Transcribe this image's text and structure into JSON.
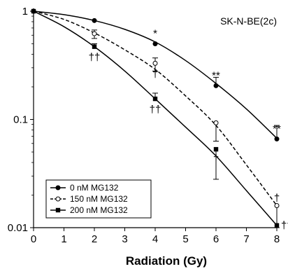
{
  "chart_data": {
    "type": "line",
    "title": "SK-N-BE(2c)",
    "xlabel": "Radiation (Gy)",
    "ylabel": "",
    "y_scale": "log",
    "xlim": [
      0,
      8
    ],
    "ylim": [
      0.01,
      1
    ],
    "x_ticks": [
      0,
      1,
      2,
      3,
      4,
      5,
      6,
      7,
      8
    ],
    "x_tick_labels": [
      "0",
      "1",
      "2",
      "3",
      "4",
      "5",
      "6",
      "7",
      "8"
    ],
    "y_ticks": [
      0.01,
      0.1,
      1
    ],
    "y_tick_labels": [
      "0.01",
      "0.1",
      "1"
    ],
    "grid": false,
    "legend_position": "bottom-left",
    "series": [
      {
        "name": "0 nM MG132",
        "marker": "filled-circle",
        "line": "solid",
        "color": "#000000",
        "x": [
          0,
          2,
          4,
          6,
          8
        ],
        "y": [
          1.0,
          0.82,
          0.5,
          0.205,
          0.066
        ],
        "err_up": [
          0,
          0,
          0,
          0.04,
          0.022
        ],
        "curve": [
          [
            0,
            1.0
          ],
          [
            1,
            0.93
          ],
          [
            2,
            0.82
          ],
          [
            3,
            0.68
          ],
          [
            4,
            0.52
          ],
          [
            5,
            0.35
          ],
          [
            6,
            0.215
          ],
          [
            7,
            0.125
          ],
          [
            8,
            0.067
          ]
        ]
      },
      {
        "name": "150 nM MG132",
        "marker": "open-circle",
        "line": "dashed",
        "color": "#000000",
        "x": [
          0,
          2,
          4,
          6,
          8
        ],
        "y": [
          1.0,
          0.62,
          0.33,
          0.093,
          0.016
        ],
        "err_up": [
          0,
          0.05,
          0.04,
          0.0,
          0.0
        ],
        "err_down": [
          0,
          0.06,
          0.05,
          0.03,
          0.006
        ],
        "curve": [
          [
            0,
            1.0
          ],
          [
            1,
            0.84
          ],
          [
            2,
            0.63
          ],
          [
            3,
            0.44
          ],
          [
            4,
            0.29
          ],
          [
            5,
            0.165
          ],
          [
            6,
            0.088
          ],
          [
            7,
            0.038
          ],
          [
            8,
            0.016
          ]
        ]
      },
      {
        "name": "200 nM MG132",
        "marker": "filled-square",
        "line": "solid",
        "color": "#000000",
        "x": [
          0,
          2,
          4,
          6,
          8
        ],
        "y": [
          1.0,
          0.47,
          0.155,
          0.053,
          0.0105
        ],
        "err_up": [
          0,
          0.03,
          0.02,
          0.0,
          0.0
        ],
        "err_down": [
          0,
          0.0,
          0.0,
          0.025,
          0.0
        ],
        "curve": [
          [
            0,
            1.0
          ],
          [
            1,
            0.72
          ],
          [
            2,
            0.47
          ],
          [
            3,
            0.28
          ],
          [
            4,
            0.155
          ],
          [
            5,
            0.085
          ],
          [
            6,
            0.046
          ],
          [
            7,
            0.022
          ],
          [
            8,
            0.0105
          ]
        ]
      }
    ],
    "annotations": [
      {
        "text": "*",
        "x": 4,
        "y": 0.5,
        "placement": "above"
      },
      {
        "text": "**",
        "x": 6,
        "y": 0.205,
        "placement": "above"
      },
      {
        "text": "**",
        "x": 8,
        "y": 0.066,
        "placement": "above"
      },
      {
        "text": "†",
        "x": 4,
        "y": 0.33,
        "placement": "below"
      },
      {
        "text": "†",
        "x": 6,
        "y": 0.093,
        "placement": "below"
      },
      {
        "text": "†",
        "x": 8,
        "y": 0.016,
        "placement": "above"
      },
      {
        "text": "††",
        "x": 2,
        "y": 0.47,
        "placement": "below"
      },
      {
        "text": "††",
        "x": 4,
        "y": 0.155,
        "placement": "below"
      },
      {
        "text": "††",
        "x": 8,
        "y": 0.0105,
        "placement": "right"
      }
    ]
  }
}
